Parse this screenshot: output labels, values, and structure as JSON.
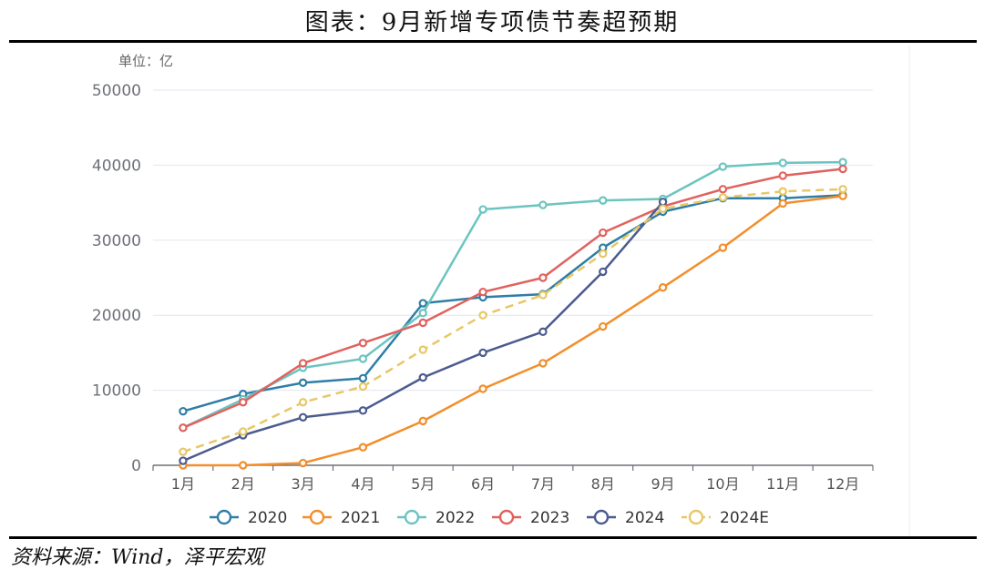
{
  "title": "图表：9月新增专项债节奏超预期",
  "source": "资料来源：Wind，泽平宏观",
  "chart_data": {
    "type": "line",
    "unit_label": "单位：亿",
    "categories": [
      "1月",
      "2月",
      "3月",
      "4月",
      "5月",
      "6月",
      "7月",
      "8月",
      "9月",
      "10月",
      "11月",
      "12月"
    ],
    "ylim": [
      0,
      50000
    ],
    "yticks": [
      0,
      10000,
      20000,
      30000,
      40000,
      50000
    ],
    "grid": true,
    "legend_position": "bottom",
    "series": [
      {
        "name": "2020",
        "color": "#2e7ea6",
        "dashed": false,
        "values": [
          7200,
          9500,
          11000,
          11600,
          21600,
          22400,
          22800,
          29000,
          33800,
          35600,
          35600,
          36000
        ]
      },
      {
        "name": "2021",
        "color": "#f28e2b",
        "dashed": false,
        "values": [
          0,
          0,
          300,
          2400,
          5900,
          10200,
          13600,
          18500,
          23700,
          29000,
          34900,
          35900
        ]
      },
      {
        "name": "2022",
        "color": "#6cc4c0",
        "dashed": false,
        "values": [
          5000,
          8800,
          13000,
          14200,
          20300,
          34100,
          34700,
          35300,
          35500,
          39800,
          40300,
          40400
        ]
      },
      {
        "name": "2023",
        "color": "#e0625e",
        "dashed": false,
        "values": [
          5000,
          8400,
          13600,
          16300,
          19000,
          23100,
          25000,
          31000,
          34500,
          36800,
          38600,
          39500
        ]
      },
      {
        "name": "2024",
        "color": "#4c5b8f",
        "dashed": false,
        "values": [
          600,
          4000,
          6400,
          7300,
          11700,
          15000,
          17800,
          25800,
          35100,
          null,
          null,
          null
        ]
      },
      {
        "name": "2024E",
        "color": "#e8c766",
        "dashed": true,
        "values": [
          1800,
          4500,
          8400,
          10500,
          15400,
          20000,
          22700,
          28200,
          34200,
          35700,
          36500,
          36800
        ]
      }
    ]
  }
}
